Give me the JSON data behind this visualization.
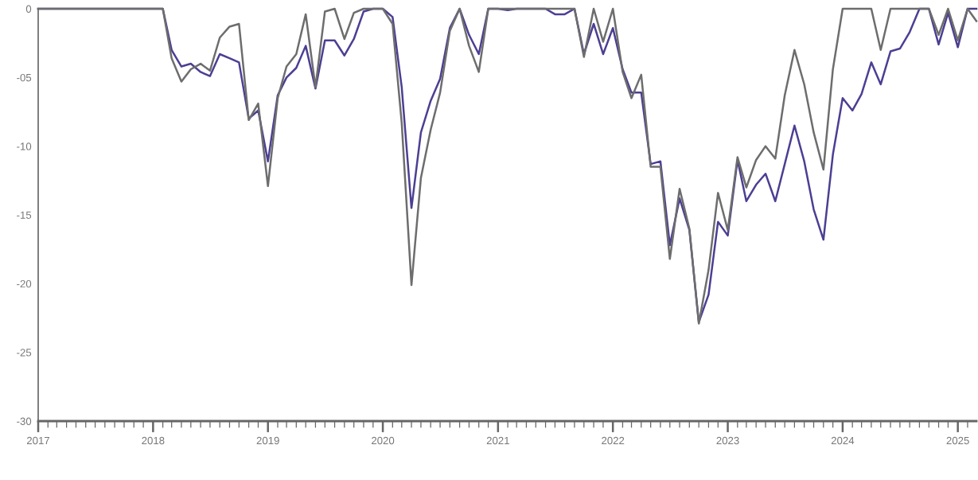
{
  "chart_data": {
    "type": "line",
    "x": [
      "2017-01",
      "2017-02",
      "2017-03",
      "2017-04",
      "2017-05",
      "2017-06",
      "2017-07",
      "2017-08",
      "2017-09",
      "2017-10",
      "2017-11",
      "2017-12",
      "2018-01",
      "2018-02",
      "2018-03",
      "2018-04",
      "2018-05",
      "2018-06",
      "2018-07",
      "2018-08",
      "2018-09",
      "2018-10",
      "2018-11",
      "2018-12",
      "2019-01",
      "2019-02",
      "2019-03",
      "2019-04",
      "2019-05",
      "2019-06",
      "2019-07",
      "2019-08",
      "2019-09",
      "2019-10",
      "2019-11",
      "2019-12",
      "2020-01",
      "2020-02",
      "2020-03",
      "2020-04",
      "2020-05",
      "2020-06",
      "2020-07",
      "2020-08",
      "2020-09",
      "2020-10",
      "2020-11",
      "2020-12",
      "2021-01",
      "2021-02",
      "2021-03",
      "2021-04",
      "2021-05",
      "2021-06",
      "2021-07",
      "2021-08",
      "2021-09",
      "2021-10",
      "2021-11",
      "2021-12",
      "2022-01",
      "2022-02",
      "2022-03",
      "2022-04",
      "2022-05",
      "2022-06",
      "2022-07",
      "2022-08",
      "2022-09",
      "2022-10",
      "2022-11",
      "2022-12",
      "2023-01",
      "2023-02",
      "2023-03",
      "2023-04",
      "2023-05",
      "2023-06",
      "2023-07",
      "2023-08",
      "2023-09",
      "2023-10",
      "2023-11",
      "2023-12",
      "2024-01",
      "2024-02",
      "2024-03",
      "2024-04",
      "2024-05",
      "2024-06",
      "2024-07",
      "2024-08",
      "2024-09",
      "2024-10",
      "2024-11",
      "2024-12",
      "2025-01",
      "2025-02",
      "2025-03"
    ],
    "series": [
      {
        "color": "#4b3f93",
        "values": [
          0,
          0,
          0,
          0,
          0,
          0,
          0,
          0,
          0,
          0,
          0,
          0,
          0,
          0,
          -3.0,
          -4.2,
          -4.0,
          -4.6,
          -4.9,
          -3.3,
          -3.6,
          -3.9,
          -8.0,
          -7.4,
          -11.1,
          -6.3,
          -5.0,
          -4.3,
          -2.7,
          -5.8,
          -2.3,
          -2.3,
          -3.4,
          -2.2,
          -0.2,
          0,
          0,
          -0.6,
          -5.7,
          -14.5,
          -9.0,
          -6.7,
          -5.1,
          -1.4,
          0,
          -1.9,
          -3.3,
          0,
          0,
          -0.1,
          0,
          0,
          0,
          0,
          -0.4,
          -0.4,
          0,
          -3.3,
          -1.1,
          -3.3,
          -1.4,
          -4.4,
          -6.1,
          -6.1,
          -11.3,
          -11.1,
          -17.2,
          -13.8,
          -16.1,
          -22.8,
          -20.8,
          -15.5,
          -16.5,
          -11.0,
          -14.0,
          -12.8,
          -12.0,
          -14.0,
          -11.3,
          -8.5,
          -11.1,
          -14.6,
          -16.8,
          -10.6,
          -6.5,
          -7.4,
          -6.2,
          -3.9,
          -5.5,
          -3.1,
          -2.9,
          -1.7,
          0,
          0,
          -2.6,
          -0.3,
          -2.8,
          0,
          0
        ]
      },
      {
        "color": "#6d6d6d",
        "values": [
          0,
          0,
          0,
          0,
          0,
          0,
          0,
          0,
          0,
          0,
          0,
          0,
          0,
          0,
          -3.6,
          -5.3,
          -4.4,
          -4.0,
          -4.5,
          -2.1,
          -1.3,
          -1.1,
          -8.1,
          -6.9,
          -12.9,
          -6.5,
          -4.2,
          -3.3,
          -0.4,
          -5.7,
          -0.2,
          0,
          -2.2,
          -0.3,
          0,
          0,
          0,
          -1.1,
          -8.3,
          -20.1,
          -12.3,
          -8.8,
          -6.1,
          -1.6,
          0,
          -2.7,
          -4.6,
          0,
          0,
          0,
          0,
          0,
          0,
          0,
          0,
          0,
          0,
          -3.5,
          0,
          -2.4,
          0,
          -4.6,
          -6.5,
          -4.8,
          -11.5,
          -11.5,
          -18.2,
          -13.1,
          -16.0,
          -22.9,
          -19.0,
          -13.4,
          -16.1,
          -10.8,
          -13.0,
          -11.0,
          -10.0,
          -10.9,
          -6.3,
          -3.0,
          -5.5,
          -9.0,
          -11.7,
          -4.4,
          0,
          0,
          0,
          0,
          -3.0,
          0,
          0,
          0,
          0,
          0,
          -1.9,
          0,
          -2.3,
          0,
          -0.9
        ]
      }
    ],
    "xlim": [
      "2017-01",
      "2025-03"
    ],
    "xticks": [
      "2017",
      {
        "value": "2017-02",
        "label": null
      },
      {
        "value": "2017-03",
        "label": null
      },
      {
        "value": "2017-04",
        "label": null
      },
      {
        "value": "2017-05",
        "label": null
      },
      {
        "value": "2017-06",
        "label": null
      },
      {
        "value": "2017-07",
        "label": null
      },
      {
        "value": "2017-08",
        "label": null
      },
      {
        "value": "2017-09",
        "label": null
      },
      {
        "value": "2017-10",
        "label": null
      },
      {
        "value": "2017-11",
        "label": null
      },
      {
        "value": "2017-12",
        "label": null
      },
      "2018",
      {
        "value": "2018-02",
        "label": null
      },
      {
        "value": "2018-03",
        "label": null
      },
      {
        "value": "2018-04",
        "label": null
      },
      {
        "value": "2018-05",
        "label": null
      },
      {
        "value": "2018-06",
        "label": null
      },
      {
        "value": "2018-07",
        "label": null
      },
      {
        "value": "2018-08",
        "label": null
      },
      {
        "value": "2018-09",
        "label": null
      },
      {
        "value": "2018-10",
        "label": null
      },
      {
        "value": "2018-11",
        "label": null
      },
      {
        "value": "2018-12",
        "label": null
      },
      "2019",
      {
        "value": "2019-02",
        "label": null
      },
      {
        "value": "2019-03",
        "label": null
      },
      {
        "value": "2019-04",
        "label": null
      },
      {
        "value": "2019-05",
        "label": null
      },
      {
        "value": "2019-06",
        "label": null
      },
      {
        "value": "2019-07",
        "label": null
      },
      {
        "value": "2019-08",
        "label": null
      },
      {
        "value": "2019-09",
        "label": null
      },
      {
        "value": "2019-10",
        "label": null
      },
      {
        "value": "2019-11",
        "label": null
      },
      {
        "value": "2019-12",
        "label": null
      },
      "2020",
      {
        "value": "2020-02",
        "label": null
      },
      {
        "value": "2020-03",
        "label": null
      },
      {
        "value": "2020-04",
        "label": null
      },
      {
        "value": "2020-05",
        "label": null
      },
      {
        "value": "2020-06",
        "label": null
      },
      {
        "value": "2020-07",
        "label": null
      },
      {
        "value": "2020-08",
        "label": null
      },
      {
        "value": "2020-09",
        "label": null
      },
      {
        "value": "2020-10",
        "label": null
      },
      {
        "value": "2020-11",
        "label": null
      },
      {
        "value": "2020-12",
        "label": null
      },
      "2021",
      {
        "value": "2021-02",
        "label": null
      },
      {
        "value": "2021-03",
        "label": null
      },
      {
        "value": "2021-04",
        "label": null
      },
      {
        "value": "2021-05",
        "label": null
      },
      {
        "value": "2021-06",
        "label": null
      },
      {
        "value": "2021-07",
        "label": null
      },
      {
        "value": "2021-08",
        "label": null
      },
      {
        "value": "2021-09",
        "label": null
      },
      {
        "value": "2021-10",
        "label": null
      },
      {
        "value": "2021-11",
        "label": null
      },
      {
        "value": "2021-12",
        "label": null
      },
      "2022",
      {
        "value": "2022-02",
        "label": null
      },
      {
        "value": "2022-03",
        "label": null
      },
      {
        "value": "2022-04",
        "label": null
      },
      {
        "value": "2022-05",
        "label": null
      },
      {
        "value": "2022-06",
        "label": null
      },
      {
        "value": "2022-07",
        "label": null
      },
      {
        "value": "2022-08",
        "label": null
      },
      {
        "value": "2022-09",
        "label": null
      },
      {
        "value": "2022-10",
        "label": null
      },
      {
        "value": "2022-11",
        "label": null
      },
      {
        "value": "2022-12",
        "label": null
      },
      "2023",
      {
        "value": "2023-02",
        "label": null
      },
      {
        "value": "2023-03",
        "label": null
      },
      {
        "value": "2023-04",
        "label": null
      },
      {
        "value": "2023-05",
        "label": null
      },
      {
        "value": "2023-06",
        "label": null
      },
      {
        "value": "2023-07",
        "label": null
      },
      {
        "value": "2023-08",
        "label": null
      },
      {
        "value": "2023-09",
        "label": null
      },
      {
        "value": "2023-10",
        "label": null
      },
      {
        "value": "2023-11",
        "label": null
      },
      {
        "value": "2023-12",
        "label": null
      },
      "2024",
      {
        "value": "2024-02",
        "label": null
      },
      {
        "value": "2024-03",
        "label": null
      },
      {
        "value": "2024-04",
        "label": null
      },
      {
        "value": "2024-05",
        "label": null
      },
      {
        "value": "2024-06",
        "label": null
      },
      {
        "value": "2024-07",
        "label": null
      },
      {
        "value": "2024-08",
        "label": null
      },
      {
        "value": "2024-09",
        "label": null
      },
      {
        "value": "2024-10",
        "label": null
      },
      {
        "value": "2024-11",
        "label": null
      },
      {
        "value": "2024-12",
        "label": null
      },
      "2025",
      {
        "value": "2025-02",
        "label": null
      }
    ],
    "ylim": [
      -30,
      0
    ],
    "yticks": [
      -30,
      -25,
      -20,
      -15,
      -10,
      {
        "value": -5,
        "label": "-05"
      },
      0
    ],
    "grid": false,
    "marker": "none",
    "line_style": "solid"
  }
}
